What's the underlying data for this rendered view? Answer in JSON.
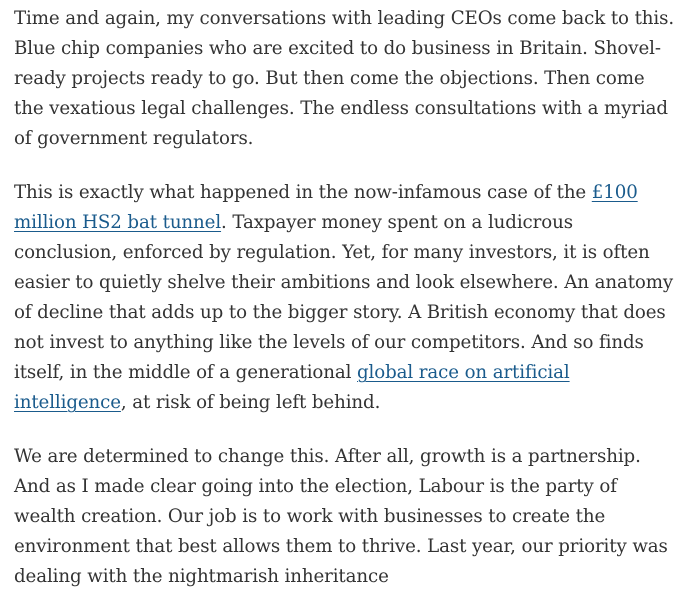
{
  "article": {
    "paragraphs": [
      {
        "text": "Time and again, my conversations with leading CEOs come back to this. Blue chip companies who are excited to do business in Britain. Shovel-ready projects ready to go. But then come the objections. Then come the vexatious legal challenges. The endless consultations with a myriad of government regulators."
      },
      {
        "before": "This is exactly what happened in the now-infamous case of the ",
        "link1": "£100 million HS2 bat tunnel",
        "middle": ". Taxpayer money spent on a ludicrous conclusion, enforced by regulation. Yet, for many investors, it is often easier to quietly shelve their ambitions and look elsewhere. An anatomy of decline that adds up to the bigger story. A British economy that does not invest to anything like the levels of our competitors. And so finds itself, in the middle of a generational ",
        "link2": "global race on artificial intelligence",
        "after": ", at risk of being left behind."
      },
      {
        "text": "We are determined to change this. After all, growth is a partnership. And as I made clear going into the election, Labour is the party of wealth creation. Our job is to work with businesses to create the environment that best allows them to thrive. Last year, our priority was dealing with the nightmarish inheritance"
      }
    ]
  }
}
